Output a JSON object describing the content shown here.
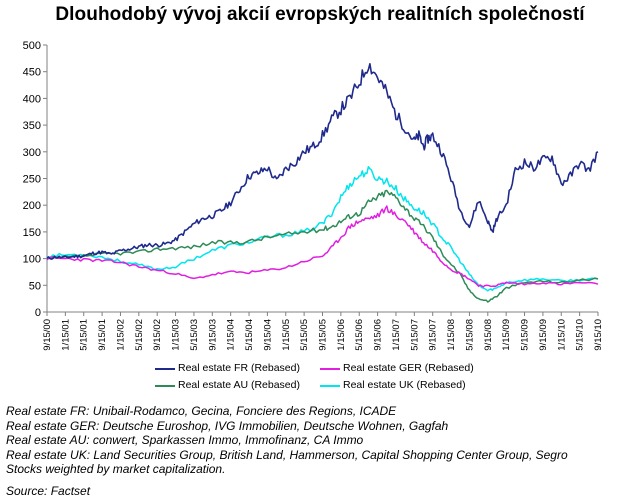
{
  "title": "Dlouhodobý vývoj akcií evropských realitních společností",
  "chart_data": {
    "type": "line",
    "ylim": [
      0,
      500
    ],
    "yticks": [
      0,
      50,
      100,
      150,
      200,
      250,
      300,
      350,
      400,
      450,
      500
    ],
    "x_tick_labels": [
      "9/15/00",
      "1/15/01",
      "5/15/01",
      "9/15/01",
      "1/15/02",
      "5/15/02",
      "9/15/02",
      "1/15/03",
      "5/15/03",
      "9/15/03",
      "1/15/04",
      "5/15/04",
      "9/15/04",
      "1/15/05",
      "5/15/05",
      "9/15/05",
      "1/15/06",
      "5/15/06",
      "9/15/06",
      "1/15/07",
      "5/15/07",
      "9/15/07",
      "1/15/08",
      "5/15/08",
      "9/15/08",
      "1/15/09",
      "5/15/09",
      "9/15/09",
      "1/15/10",
      "5/15/10",
      "9/15/10"
    ],
    "grid": false,
    "legend_placement": "bottom",
    "series": [
      {
        "name": "Real estate FR (Rebased)",
        "color": "#1f2a8c",
        "x": [
          0,
          2,
          4,
          6,
          8,
          10,
          12,
          14,
          16,
          18,
          20,
          22,
          24,
          26,
          28,
          30,
          32,
          34,
          36,
          38,
          40,
          42,
          44,
          46,
          48,
          50,
          52,
          54,
          56,
          58,
          60,
          62,
          64,
          66,
          68,
          70,
          72,
          74,
          76,
          78,
          80,
          81,
          82,
          83,
          84,
          86,
          88,
          90,
          92,
          94,
          96,
          97,
          98,
          100,
          102,
          104,
          106,
          108,
          110,
          112,
          114,
          116,
          118,
          120
        ],
        "y": [
          100,
          103,
          102,
          104,
          105,
          110,
          112,
          108,
          115,
          118,
          122,
          126,
          125,
          128,
          135,
          150,
          165,
          175,
          180,
          190,
          205,
          230,
          255,
          260,
          270,
          245,
          268,
          280,
          300,
          310,
          330,
          360,
          380,
          400,
          430,
          465,
          440,
          410,
          370,
          345,
          320,
          330,
          310,
          325,
          330,
          300,
          250,
          190,
          160,
          210,
          170,
          150,
          175,
          200,
          265,
          280,
          270,
          285,
          290,
          240,
          255,
          280,
          265,
          300
        ]
      },
      {
        "name": "Real estate GER (Rebased)",
        "color": "#e020e0",
        "x": [
          0,
          4,
          8,
          12,
          16,
          20,
          24,
          28,
          32,
          36,
          40,
          44,
          48,
          52,
          56,
          60,
          62,
          64,
          66,
          68,
          70,
          72,
          74,
          76,
          78,
          80,
          82,
          84,
          86,
          88,
          90,
          92,
          94,
          96,
          98,
          100,
          104,
          108,
          112,
          116,
          120
        ],
        "y": [
          100,
          100,
          98,
          96,
          93,
          85,
          78,
          72,
          62,
          70,
          75,
          74,
          78,
          83,
          95,
          105,
          120,
          140,
          160,
          170,
          175,
          180,
          195,
          180,
          170,
          150,
          130,
          115,
          95,
          80,
          72,
          62,
          50,
          48,
          50,
          55,
          52,
          55,
          52,
          55,
          52
        ]
      },
      {
        "name": "Real estate AU (Rebased)",
        "color": "#2e8b57",
        "x": [
          0,
          4,
          8,
          12,
          16,
          20,
          24,
          28,
          32,
          36,
          40,
          44,
          48,
          52,
          56,
          60,
          62,
          64,
          66,
          68,
          70,
          72,
          74,
          76,
          78,
          80,
          82,
          84,
          86,
          88,
          90,
          92,
          94,
          96,
          98,
          100,
          104,
          108,
          112,
          116,
          120
        ],
        "y": [
          100,
          102,
          105,
          108,
          110,
          112,
          118,
          120,
          122,
          130,
          130,
          132,
          140,
          145,
          150,
          155,
          160,
          170,
          180,
          185,
          205,
          215,
          225,
          215,
          195,
          175,
          160,
          140,
          110,
          90,
          70,
          40,
          25,
          20,
          30,
          45,
          55,
          58,
          55,
          60,
          62
        ]
      },
      {
        "name": "Real estate UK (Rebased)",
        "color": "#00e5ee",
        "x": [
          0,
          4,
          8,
          12,
          16,
          20,
          24,
          28,
          32,
          36,
          40,
          44,
          48,
          52,
          56,
          60,
          62,
          64,
          66,
          68,
          70,
          72,
          74,
          76,
          78,
          80,
          82,
          84,
          86,
          88,
          90,
          92,
          94,
          96,
          98,
          100,
          104,
          108,
          112,
          116,
          120
        ],
        "y": [
          105,
          107,
          108,
          103,
          95,
          88,
          80,
          85,
          100,
          115,
          125,
          130,
          140,
          145,
          150,
          165,
          185,
          215,
          240,
          255,
          265,
          250,
          245,
          230,
          210,
          195,
          185,
          165,
          140,
          120,
          95,
          70,
          50,
          40,
          45,
          55,
          60,
          62,
          58,
          60,
          62
        ]
      }
    ]
  },
  "notes": [
    "Real estate FR: Unibail-Rodamco, Gecina, Fonciere des Regions, ICADE",
    "Real estate GER: Deutsche Euroshop, IVG Immobilien, Deutsche Wohnen, Gagfah",
    "Real estate AU: conwert, Sparkassen Immo, Immofinanz, CA Immo",
    "Real estate UK: Land Securities Group, British Land, Hammerson, Capital Shopping Center Group, Segro",
    "Stocks weighted by market capitalization."
  ],
  "source": "Source: Factset"
}
